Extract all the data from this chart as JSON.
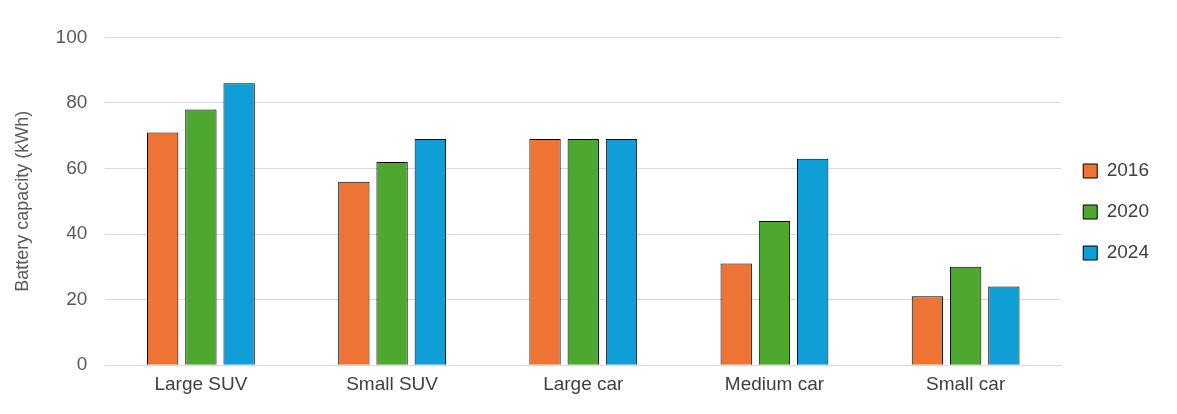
{
  "chart_data": {
    "type": "bar",
    "ylabel": "Battery capacity (kWh)",
    "categories": [
      "Large SUV",
      "Small SUV",
      "Large car",
      "Medium car",
      "Small car"
    ],
    "series": [
      {
        "name": "2016",
        "color": "#ed7434",
        "values": [
          71,
          56,
          69,
          31,
          21
        ]
      },
      {
        "name": "2020",
        "color": "#4ea72e",
        "values": [
          78,
          62,
          69,
          44,
          30
        ]
      },
      {
        "name": "2024",
        "color": "#0f9ed5",
        "values": [
          86,
          69,
          69,
          63,
          24
        ]
      }
    ],
    "ylim": [
      0,
      100
    ],
    "yticks": [
      0,
      20,
      40,
      60,
      80,
      100
    ],
    "grid": "y",
    "legend": "right"
  }
}
